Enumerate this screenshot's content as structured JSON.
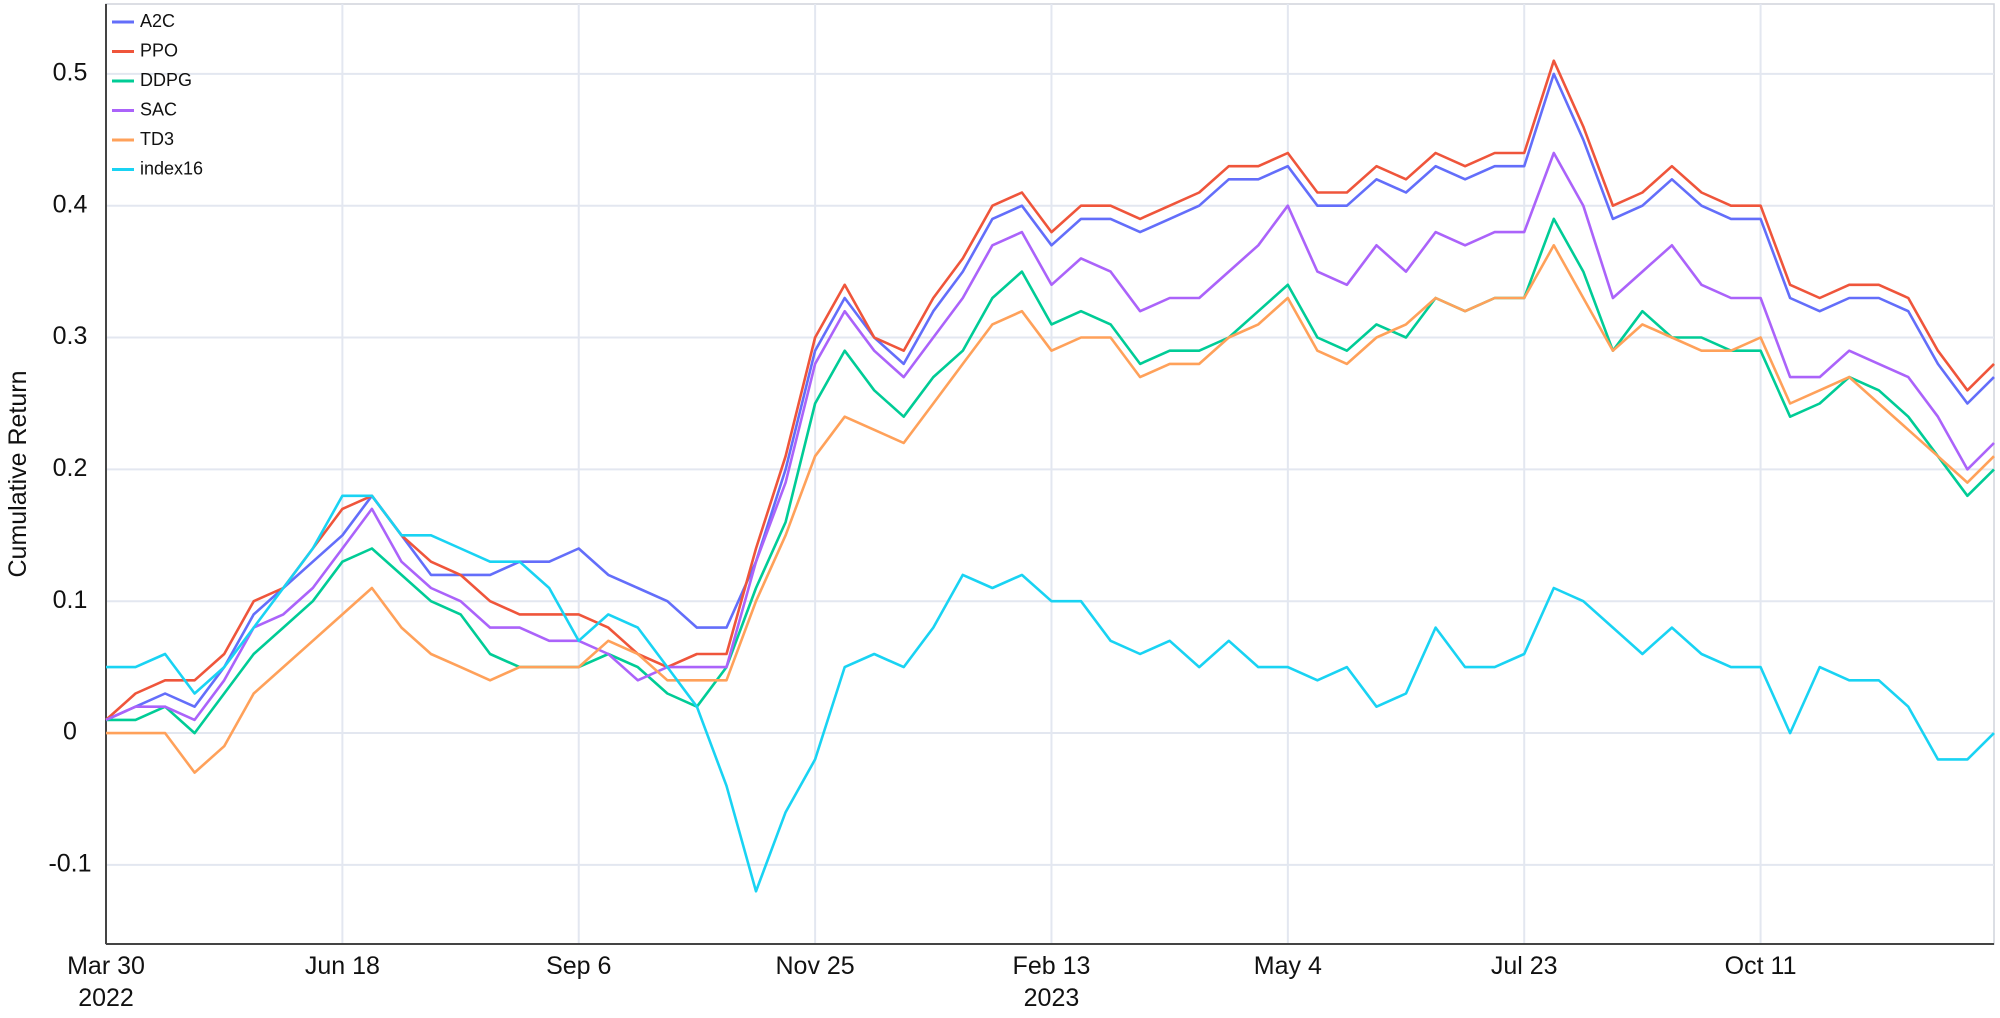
{
  "chart_data": {
    "type": "line",
    "y_label": "Cumulative Return",
    "x": [
      "2022-03-30",
      "2022-04-09",
      "2022-04-19",
      "2022-04-29",
      "2022-05-09",
      "2022-05-19",
      "2022-05-29",
      "2022-06-08",
      "2022-06-18",
      "2022-06-28",
      "2022-07-08",
      "2022-07-18",
      "2022-07-28",
      "2022-08-07",
      "2022-08-17",
      "2022-08-27",
      "2022-09-06",
      "2022-09-16",
      "2022-09-26",
      "2022-10-06",
      "2022-10-16",
      "2022-10-26",
      "2022-11-05",
      "2022-11-15",
      "2022-11-25",
      "2022-12-05",
      "2022-12-15",
      "2022-12-25",
      "2023-01-04",
      "2023-01-14",
      "2023-01-24",
      "2023-02-03",
      "2023-02-13",
      "2023-02-23",
      "2023-03-05",
      "2023-03-15",
      "2023-03-25",
      "2023-04-04",
      "2023-04-14",
      "2023-04-24",
      "2023-05-04",
      "2023-05-14",
      "2023-05-24",
      "2023-06-03",
      "2023-06-13",
      "2023-06-23",
      "2023-07-03",
      "2023-07-13",
      "2023-07-23",
      "2023-08-02",
      "2023-08-12",
      "2023-08-22",
      "2023-09-01",
      "2023-09-11",
      "2023-09-21",
      "2023-10-01",
      "2023-10-11",
      "2023-10-21",
      "2023-10-31",
      "2023-11-10",
      "2023-11-20",
      "2023-11-30",
      "2023-12-10",
      "2023-12-20",
      "2023-12-29"
    ],
    "series": [
      {
        "name": "A2C",
        "color": "#636efa",
        "values": [
          0.01,
          0.02,
          0.03,
          0.02,
          0.05,
          0.09,
          0.11,
          0.13,
          0.15,
          0.18,
          0.15,
          0.12,
          0.12,
          0.12,
          0.13,
          0.13,
          0.14,
          0.12,
          0.11,
          0.1,
          0.08,
          0.08,
          0.13,
          0.2,
          0.29,
          0.33,
          0.3,
          0.28,
          0.32,
          0.35,
          0.39,
          0.4,
          0.37,
          0.39,
          0.39,
          0.38,
          0.39,
          0.4,
          0.42,
          0.42,
          0.43,
          0.4,
          0.4,
          0.42,
          0.41,
          0.43,
          0.42,
          0.43,
          0.43,
          0.5,
          0.45,
          0.39,
          0.4,
          0.42,
          0.4,
          0.39,
          0.39,
          0.33,
          0.32,
          0.33,
          0.33,
          0.32,
          0.28,
          0.25,
          0.27
        ]
      },
      {
        "name": "PPO",
        "color": "#ef553b",
        "values": [
          0.01,
          0.03,
          0.04,
          0.04,
          0.06,
          0.1,
          0.11,
          0.14,
          0.17,
          0.18,
          0.15,
          0.13,
          0.12,
          0.1,
          0.09,
          0.09,
          0.09,
          0.08,
          0.06,
          0.05,
          0.06,
          0.06,
          0.14,
          0.21,
          0.3,
          0.34,
          0.3,
          0.29,
          0.33,
          0.36,
          0.4,
          0.41,
          0.38,
          0.4,
          0.4,
          0.39,
          0.4,
          0.41,
          0.43,
          0.43,
          0.44,
          0.41,
          0.41,
          0.43,
          0.42,
          0.44,
          0.43,
          0.44,
          0.44,
          0.51,
          0.46,
          0.4,
          0.41,
          0.43,
          0.41,
          0.4,
          0.4,
          0.34,
          0.33,
          0.34,
          0.34,
          0.33,
          0.29,
          0.26,
          0.28
        ]
      },
      {
        "name": "DDPG",
        "color": "#00cc96",
        "values": [
          0.01,
          0.01,
          0.02,
          0.0,
          0.03,
          0.06,
          0.08,
          0.1,
          0.13,
          0.14,
          0.12,
          0.1,
          0.09,
          0.06,
          0.05,
          0.05,
          0.05,
          0.06,
          0.05,
          0.03,
          0.02,
          0.05,
          0.11,
          0.16,
          0.25,
          0.29,
          0.26,
          0.24,
          0.27,
          0.29,
          0.33,
          0.35,
          0.31,
          0.32,
          0.31,
          0.28,
          0.29,
          0.29,
          0.3,
          0.32,
          0.34,
          0.3,
          0.29,
          0.31,
          0.3,
          0.33,
          0.32,
          0.33,
          0.33,
          0.39,
          0.35,
          0.29,
          0.32,
          0.3,
          0.3,
          0.29,
          0.29,
          0.24,
          0.25,
          0.27,
          0.26,
          0.24,
          0.21,
          0.18,
          0.2
        ]
      },
      {
        "name": "SAC",
        "color": "#ab63fa",
        "values": [
          0.01,
          0.02,
          0.02,
          0.01,
          0.04,
          0.08,
          0.09,
          0.11,
          0.14,
          0.17,
          0.13,
          0.11,
          0.1,
          0.08,
          0.08,
          0.07,
          0.07,
          0.06,
          0.04,
          0.05,
          0.05,
          0.05,
          0.13,
          0.19,
          0.28,
          0.32,
          0.29,
          0.27,
          0.3,
          0.33,
          0.37,
          0.38,
          0.34,
          0.36,
          0.35,
          0.32,
          0.33,
          0.33,
          0.35,
          0.37,
          0.4,
          0.35,
          0.34,
          0.37,
          0.35,
          0.38,
          0.37,
          0.38,
          0.38,
          0.44,
          0.4,
          0.33,
          0.35,
          0.37,
          0.34,
          0.33,
          0.33,
          0.27,
          0.27,
          0.29,
          0.28,
          0.27,
          0.24,
          0.2,
          0.22
        ]
      },
      {
        "name": "TD3",
        "color": "#ffa15a",
        "values": [
          0.0,
          0.0,
          0.0,
          -0.03,
          -0.01,
          0.03,
          0.05,
          0.07,
          0.09,
          0.11,
          0.08,
          0.06,
          0.05,
          0.04,
          0.05,
          0.05,
          0.05,
          0.07,
          0.06,
          0.04,
          0.04,
          0.04,
          0.1,
          0.15,
          0.21,
          0.24,
          0.23,
          0.22,
          0.25,
          0.28,
          0.31,
          0.32,
          0.29,
          0.3,
          0.3,
          0.27,
          0.28,
          0.28,
          0.3,
          0.31,
          0.33,
          0.29,
          0.28,
          0.3,
          0.31,
          0.33,
          0.32,
          0.33,
          0.33,
          0.37,
          0.33,
          0.29,
          0.31,
          0.3,
          0.29,
          0.29,
          0.3,
          0.25,
          0.26,
          0.27,
          0.25,
          0.23,
          0.21,
          0.19,
          0.21
        ]
      },
      {
        "name": "index16",
        "color": "#19d3f3",
        "values": [
          0.05,
          0.05,
          0.06,
          0.03,
          0.05,
          0.08,
          0.11,
          0.14,
          0.18,
          0.18,
          0.15,
          0.15,
          0.14,
          0.13,
          0.13,
          0.11,
          0.07,
          0.09,
          0.08,
          0.05,
          0.02,
          -0.04,
          -0.12,
          -0.06,
          -0.02,
          0.05,
          0.06,
          0.05,
          0.08,
          0.12,
          0.11,
          0.12,
          0.1,
          0.1,
          0.07,
          0.06,
          0.07,
          0.05,
          0.07,
          0.05,
          0.05,
          0.04,
          0.05,
          0.02,
          0.03,
          0.08,
          0.05,
          0.05,
          0.06,
          0.11,
          0.1,
          0.08,
          0.06,
          0.08,
          0.06,
          0.05,
          0.05,
          0.0,
          0.05,
          0.04,
          0.04,
          0.02,
          -0.02,
          -0.02,
          0.0
        ]
      }
    ],
    "xlim": [
      "2022-03-30",
      "2023-12-29"
    ],
    "xticks": [
      {
        "value": "2022-03-30",
        "label": "Mar 30\n2022"
      },
      {
        "value": "2022-06-18",
        "label": "Jun 18"
      },
      {
        "value": "2022-09-06",
        "label": "Sep 6"
      },
      {
        "value": "2022-11-25",
        "label": "Nov 25"
      },
      {
        "value": "2023-02-13",
        "label": "Feb 13\n2023"
      },
      {
        "value": "2023-05-04",
        "label": "May 4"
      },
      {
        "value": "2023-07-23",
        "label": "Jul 23"
      },
      {
        "value": "2023-10-11",
        "label": "Oct 11"
      }
    ],
    "ylim": [
      -0.16,
      0.553
    ],
    "yticks": [
      -0.1,
      0,
      0.1,
      0.2,
      0.3,
      0.4,
      0.5
    ],
    "grid": true,
    "legend": "top-left"
  }
}
